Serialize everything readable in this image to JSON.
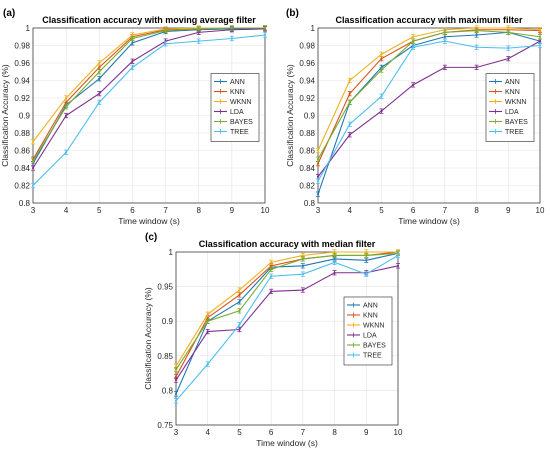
{
  "chart_data": [
    {
      "panel": "(a)",
      "type": "line",
      "title": "Classification accuracy with moving average filter",
      "xlabel": "Time window (s)",
      "ylabel": "Classification Accuracy (%)",
      "xlim": [
        3,
        10
      ],
      "ylim": [
        0.8,
        1.0
      ],
      "xticks": [
        "3",
        "4",
        "5",
        "6",
        "7",
        "8",
        "9",
        "10"
      ],
      "yticks": [
        "0.8",
        "0.82",
        "0.84",
        "0.86",
        "0.88",
        "0.9",
        "0.92",
        "0.94",
        "0.96",
        "0.98",
        "1"
      ],
      "grid": true,
      "legend": "center-right",
      "x": [
        3,
        4,
        5,
        6,
        7,
        8,
        9,
        10
      ],
      "series": [
        {
          "name": "ANN",
          "color": "#1f77b4",
          "values": [
            0.845,
            0.912,
            0.942,
            0.983,
            0.996,
            0.998,
            0.999,
            1.0
          ]
        },
        {
          "name": "KNN",
          "color": "#d95319",
          "values": [
            0.85,
            0.915,
            0.955,
            0.99,
            0.998,
            0.999,
            1.0,
            1.0
          ]
        },
        {
          "name": "WKNN",
          "color": "#edb120",
          "values": [
            0.87,
            0.92,
            0.96,
            0.992,
            0.999,
            1.0,
            1.0,
            1.0
          ]
        },
        {
          "name": "LDA",
          "color": "#7e2f8e",
          "values": [
            0.84,
            0.9,
            0.925,
            0.962,
            0.985,
            0.995,
            0.998,
            0.999
          ]
        },
        {
          "name": "BAYES",
          "color": "#77ac30",
          "values": [
            0.848,
            0.91,
            0.95,
            0.988,
            0.997,
            0.999,
            1.0,
            1.0
          ]
        },
        {
          "name": "TREE",
          "color": "#4dbeee",
          "values": [
            0.82,
            0.858,
            0.915,
            0.955,
            0.982,
            0.985,
            0.988,
            0.992
          ]
        }
      ]
    },
    {
      "panel": "(b)",
      "type": "line",
      "title": "Classification accuracy with maximum filter",
      "xlabel": "Time window (s)",
      "ylabel": "Classification Accuracy (%)",
      "xlim": [
        3,
        10
      ],
      "ylim": [
        0.8,
        1.0
      ],
      "xticks": [
        "3",
        "4",
        "5",
        "6",
        "7",
        "8",
        "9",
        "10"
      ],
      "yticks": [
        "0.8",
        "0.82",
        "0.84",
        "0.86",
        "0.88",
        "0.9",
        "0.92",
        "0.94",
        "0.96",
        "0.98",
        "1"
      ],
      "grid": true,
      "legend": "center-right",
      "x": [
        3,
        4,
        5,
        6,
        7,
        8,
        9,
        10
      ],
      "series": [
        {
          "name": "ANN",
          "color": "#1f77b4",
          "values": [
            0.81,
            0.915,
            0.955,
            0.98,
            0.99,
            0.992,
            0.995,
            0.985
          ]
        },
        {
          "name": "KNN",
          "color": "#d95319",
          "values": [
            0.845,
            0.925,
            0.965,
            0.985,
            0.995,
            0.998,
            0.998,
            0.997
          ]
        },
        {
          "name": "WKNN",
          "color": "#edb120",
          "values": [
            0.86,
            0.94,
            0.97,
            0.99,
            0.998,
            1.0,
            1.0,
            0.998
          ]
        },
        {
          "name": "LDA",
          "color": "#7e2f8e",
          "values": [
            0.83,
            0.878,
            0.905,
            0.935,
            0.955,
            0.955,
            0.965,
            0.985
          ]
        },
        {
          "name": "BAYES",
          "color": "#77ac30",
          "values": [
            0.85,
            0.915,
            0.952,
            0.985,
            0.995,
            0.997,
            0.995,
            0.99
          ]
        },
        {
          "name": "TREE",
          "color": "#4dbeee",
          "values": [
            0.825,
            0.89,
            0.922,
            0.978,
            0.985,
            0.978,
            0.977,
            0.98
          ]
        }
      ]
    },
    {
      "panel": "(c)",
      "type": "line",
      "title": "Classification accuracy with median filter",
      "xlabel": "Time window (s)",
      "ylabel": "Classification Accuracy (%)",
      "xlim": [
        3,
        10
      ],
      "ylim": [
        0.75,
        1.0
      ],
      "xticks": [
        "3",
        "4",
        "5",
        "6",
        "7",
        "8",
        "9",
        "10"
      ],
      "yticks": [
        "0.75",
        "0.8",
        "0.85",
        "0.9",
        "0.95",
        "1"
      ],
      "grid": true,
      "legend": "center-right",
      "x": [
        3,
        4,
        5,
        6,
        7,
        8,
        9,
        10
      ],
      "series": [
        {
          "name": "ANN",
          "color": "#1f77b4",
          "values": [
            0.795,
            0.9,
            0.928,
            0.978,
            0.98,
            0.99,
            0.988,
            0.998
          ]
        },
        {
          "name": "KNN",
          "color": "#d95319",
          "values": [
            0.82,
            0.905,
            0.938,
            0.98,
            0.99,
            0.995,
            0.995,
            1.0
          ]
        },
        {
          "name": "WKNN",
          "color": "#edb120",
          "values": [
            0.835,
            0.91,
            0.945,
            0.985,
            0.995,
            1.0,
            1.0,
            1.0
          ]
        },
        {
          "name": "LDA",
          "color": "#7e2f8e",
          "values": [
            0.815,
            0.885,
            0.888,
            0.943,
            0.945,
            0.97,
            0.97,
            0.98
          ]
        },
        {
          "name": "BAYES",
          "color": "#77ac30",
          "values": [
            0.83,
            0.9,
            0.915,
            0.975,
            0.99,
            0.995,
            0.995,
            0.998
          ]
        },
        {
          "name": "TREE",
          "color": "#4dbeee",
          "values": [
            0.785,
            0.838,
            0.895,
            0.965,
            0.968,
            0.985,
            0.968,
            0.995
          ]
        }
      ]
    }
  ]
}
